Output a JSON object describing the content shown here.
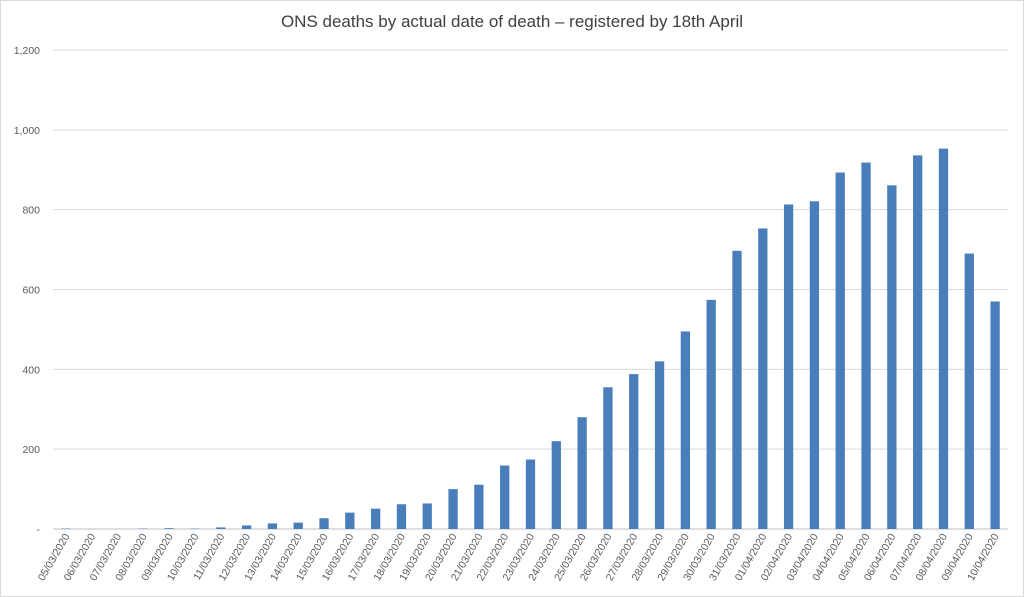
{
  "chart_data": {
    "type": "bar",
    "title": "ONS deaths by actual date of death – registered by 18th April",
    "xlabel": "",
    "ylabel": "",
    "ylim": [
      0,
      1200
    ],
    "yticks": [
      0,
      200,
      400,
      600,
      800,
      1000,
      1200
    ],
    "ytick_labels": [
      "-",
      "200",
      "400",
      "600",
      "800",
      "1,000",
      "1,200"
    ],
    "grid": true,
    "legend": "none",
    "bar_color": "#4a7ebb",
    "categories": [
      "05/03/2020",
      "06/03/2020",
      "07/03/2020",
      "08/03/2020",
      "09/03/2020",
      "10/03/2020",
      "11/03/2020",
      "12/03/2020",
      "13/03/2020",
      "14/03/2020",
      "15/03/2020",
      "16/03/2020",
      "17/03/2020",
      "18/03/2020",
      "19/03/2020",
      "20/03/2020",
      "21/03/2020",
      "22/03/2020",
      "23/03/2020",
      "24/03/2020",
      "25/03/2020",
      "26/03/2020",
      "27/03/2020",
      "28/03/2020",
      "29/03/2020",
      "30/03/2020",
      "31/03/2020",
      "01/04/2020",
      "02/04/2020",
      "03/04/2020",
      "04/04/2020",
      "05/04/2020",
      "06/04/2020",
      "07/04/2020",
      "08/04/2020",
      "09/04/2020",
      "10/04/2020"
    ],
    "values": [
      1,
      0,
      0,
      1,
      2,
      1,
      4,
      9,
      14,
      16,
      27,
      41,
      51,
      62,
      64,
      100,
      111,
      159,
      174,
      220,
      280,
      355,
      388,
      420,
      495,
      574,
      697,
      753,
      813,
      821,
      893,
      918,
      861,
      936,
      953,
      690,
      570
    ]
  }
}
